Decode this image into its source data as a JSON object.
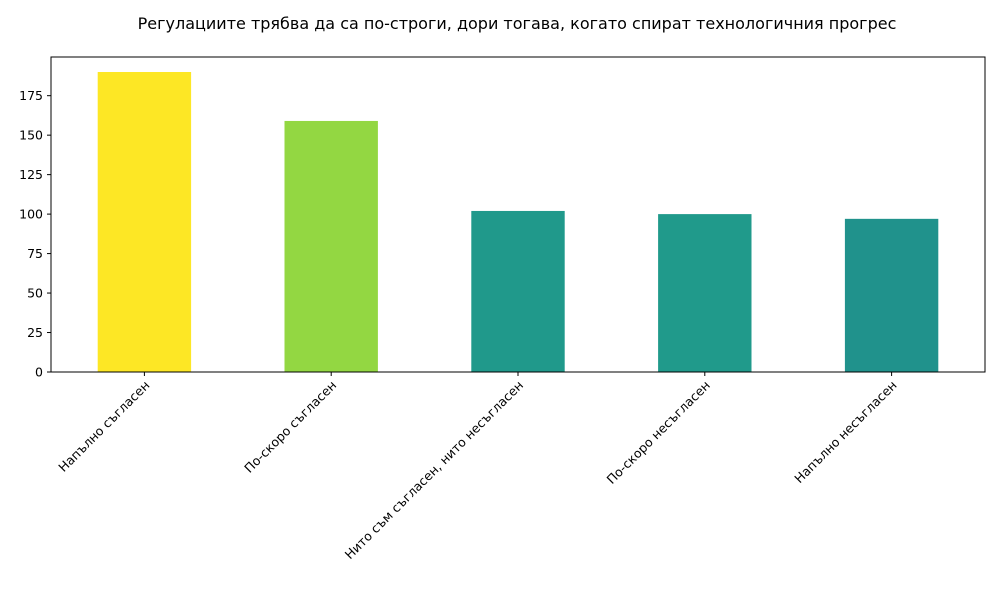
{
  "chart_data": {
    "type": "bar",
    "title": "Регулациите трябва да са по-строги, дори тогава, когато спират технологичния прогрес",
    "xlabel": "",
    "ylabel": "",
    "categories": [
      "Напълно съгласен",
      "По-скоро съгласен",
      "Нито съм съгласен, нито несъгласен",
      "По-скоро несъгласен",
      "Напълно несъгласен"
    ],
    "values": [
      190,
      159,
      102,
      100,
      97
    ],
    "colors": [
      "#fde725",
      "#93d742",
      "#20998b",
      "#209a8b",
      "#20928c"
    ],
    "ylim": [
      0,
      199.5
    ],
    "yticks": [
      0,
      25,
      50,
      75,
      100,
      125,
      150,
      175
    ],
    "grid": false,
    "legend": "none"
  }
}
